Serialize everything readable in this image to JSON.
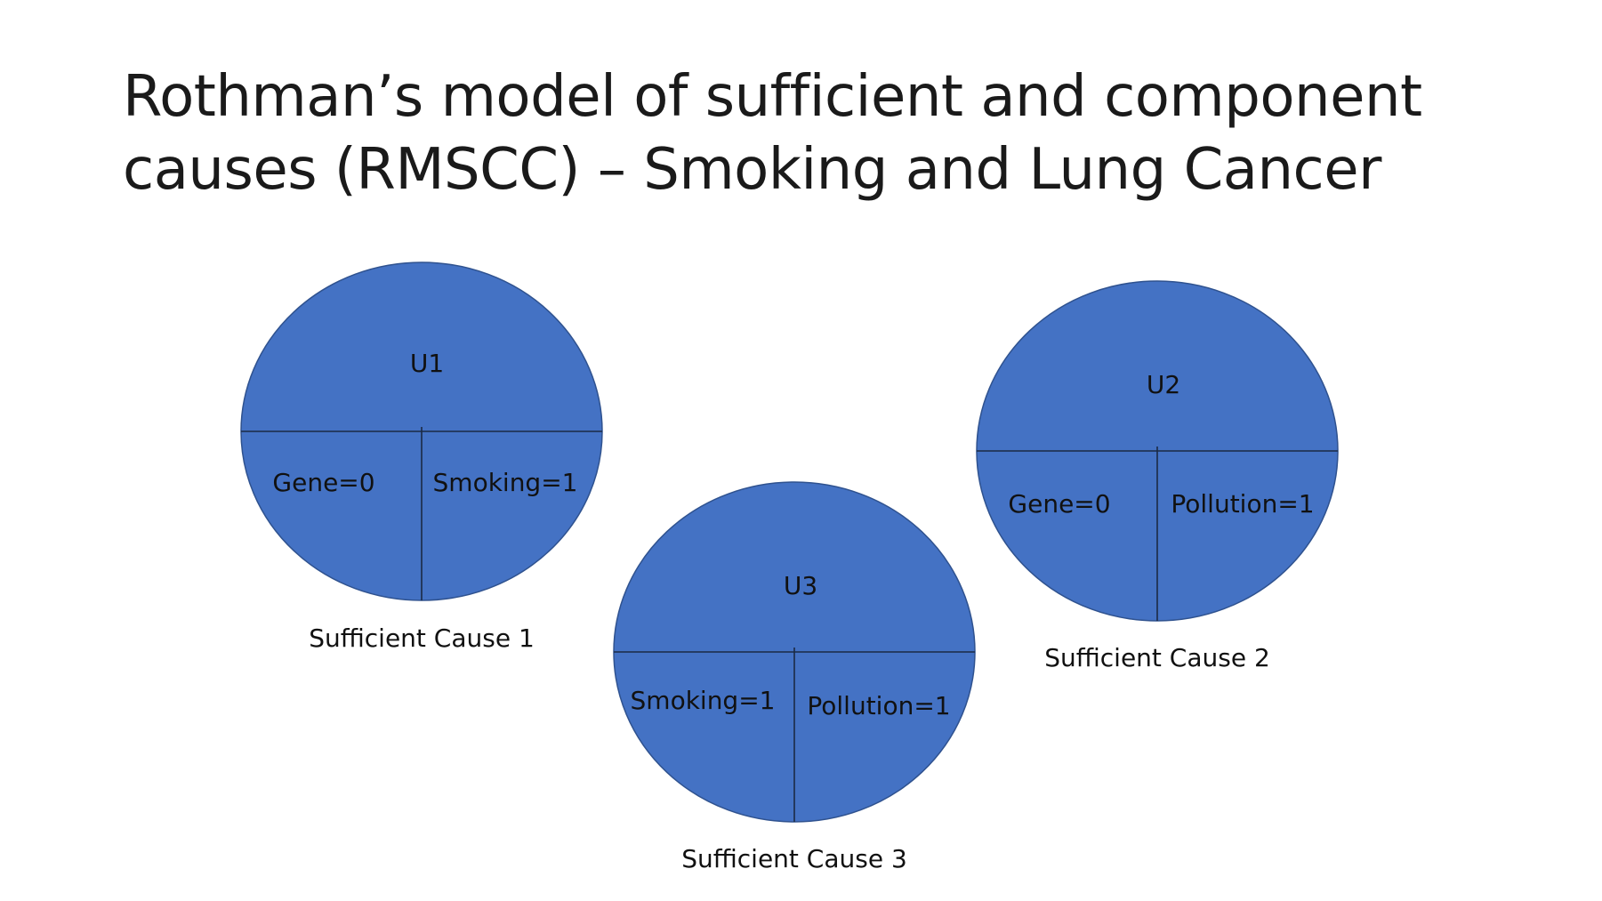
{
  "title": {
    "line1": "Rothman’s model of sufficient and component",
    "line2": "causes (RMSCC) – Smoking and Lung Cancer"
  },
  "colors": {
    "pie_fill": "#4472c4",
    "pie_outline": "#2f528f",
    "divider": "#1b2a44"
  },
  "causes": [
    {
      "top": "U1",
      "bottom_left": "Gene=0",
      "bottom_right": "Smoking=1",
      "caption": "Sufficient Cause 1"
    },
    {
      "top": "U2",
      "bottom_left": "Gene=0",
      "bottom_right": "Pollution=1",
      "caption": "Sufficient Cause 2"
    },
    {
      "top": "U3",
      "bottom_left": "Smoking=1",
      "bottom_right": "Pollution=1",
      "caption": "Sufficient Cause 3"
    }
  ]
}
